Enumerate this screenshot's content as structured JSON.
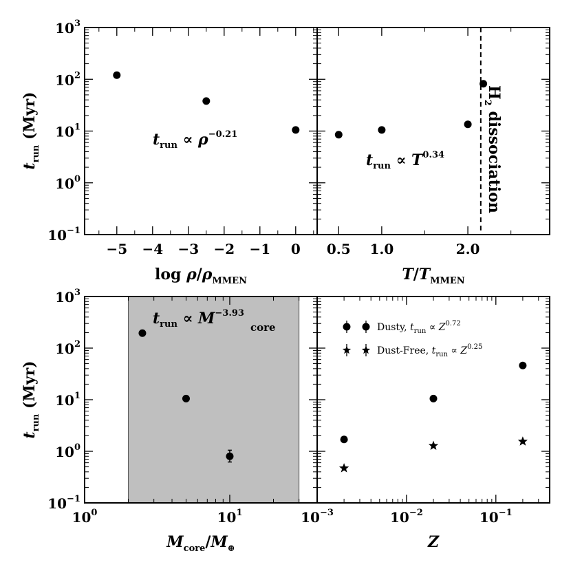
{
  "chart_data": [
    {
      "type": "scatter",
      "panel": "top-left",
      "xscale": "linear",
      "yscale": "log",
      "xlim": [
        -5.9,
        0.6
      ],
      "ylim": [
        0.1,
        1000
      ],
      "xticks": [
        -5,
        -4,
        -3,
        -2,
        -1,
        0
      ],
      "xtick_labels": [
        "−5",
        "−4",
        "−3",
        "−2",
        "−1",
        "0"
      ],
      "xlabel": {
        "pre": "log ",
        "rho": "ρ",
        "slash": "/",
        "rho2": "ρ",
        "sub": "MMEN"
      },
      "ylabel": {
        "t": "t",
        "sub": "run",
        "rest": " (Myr)"
      },
      "annotation": {
        "t": "t",
        "sub": "run",
        "mid": " ∝ ",
        "var": "ρ",
        "sup": "−0.21"
      },
      "series": [
        {
          "name": "points",
          "marker": "circle",
          "x": [
            -5.0,
            -2.5,
            0.0
          ],
          "y": [
            120,
            38,
            10.5
          ]
        }
      ]
    },
    {
      "type": "scatter",
      "panel": "top-right",
      "xscale": "linear",
      "yscale": "log",
      "xlim": [
        0.25,
        2.95
      ],
      "ylim": [
        0.1,
        1000
      ],
      "xticks": [
        0.5,
        1.0,
        2.0
      ],
      "xtick_labels": [
        "0.5",
        "1.0",
        "2.0"
      ],
      "vline": {
        "x": 2.15,
        "style": "dashed",
        "label_main": "H",
        "label_sub": "2",
        "label_rest": " dissociation"
      },
      "xlabel": {
        "T": "T",
        "slash": "/",
        "T2": "T",
        "sub": "MMEN"
      },
      "annotation": {
        "t": "t",
        "sub": "run",
        "mid": " ∝ ",
        "var": "T",
        "sup": "0.34"
      },
      "series": [
        {
          "name": "points",
          "marker": "circle",
          "x": [
            0.5,
            1.0,
            2.0,
            2.18
          ],
          "y": [
            8.5,
            10.5,
            13.5,
            82
          ]
        }
      ]
    },
    {
      "type": "scatter",
      "panel": "bottom-left",
      "xscale": "log",
      "yscale": "log",
      "xlim": [
        1,
        40
      ],
      "ylim": [
        0.1,
        1000
      ],
      "xticks": [
        1,
        10
      ],
      "xtick_labels": [
        {
          "base": "10",
          "exp": "0"
        },
        {
          "base": "10",
          "exp": "1"
        }
      ],
      "shaded_region": {
        "x": [
          2,
          30
        ],
        "color": "#bfbfbf"
      },
      "xlabel": {
        "M": "M",
        "sub": "core",
        "slash": "/",
        "M2": "M",
        "sub2": "⊕"
      },
      "ylabel": {
        "t": "t",
        "sub": "run",
        "rest": " (Myr)"
      },
      "annotation": {
        "t": "t",
        "sub": "run",
        "mid": " ∝ ",
        "var": "M",
        "sub2": "core",
        "sup": "−3.93"
      },
      "series": [
        {
          "name": "points",
          "marker": "circle",
          "x": [
            2.5,
            5.0,
            10.0
          ],
          "y": [
            195,
            10.5,
            0.8
          ],
          "yerr_low": [
            0,
            0,
            0.62
          ],
          "yerr_high": [
            0,
            0,
            1.05
          ]
        }
      ]
    },
    {
      "type": "scatter",
      "panel": "bottom-right",
      "xscale": "log",
      "yscale": "log",
      "xlim": [
        0.001,
        0.4
      ],
      "ylim": [
        0.1,
        1000
      ],
      "xticks": [
        0.001,
        0.01,
        0.1
      ],
      "xtick_labels": [
        {
          "base": "10",
          "exp": "−3"
        },
        {
          "base": "10",
          "exp": "−2"
        },
        {
          "base": "10",
          "exp": "−1"
        }
      ],
      "xlabel": {
        "Z": "Z"
      },
      "legend": {
        "placement": "top-left",
        "entries": [
          {
            "marker": "circle",
            "pre": "Dusty, ",
            "t": "t",
            "sub": "run",
            "mid": " ∝ ",
            "var": "Z",
            "sup": "0.72"
          },
          {
            "marker": "star",
            "pre": "Dust-Free, ",
            "t": "t",
            "sub": "run",
            "mid": " ∝ ",
            "var": "Z",
            "sup": "0.25"
          }
        ]
      },
      "series": [
        {
          "name": "Dusty",
          "marker": "circle",
          "x": [
            0.002,
            0.02,
            0.2
          ],
          "y": [
            1.7,
            10.5,
            46
          ]
        },
        {
          "name": "Dust-Free",
          "marker": "star",
          "x": [
            0.002,
            0.02,
            0.2
          ],
          "y": [
            0.47,
            1.28,
            1.55
          ]
        }
      ]
    }
  ],
  "y_tick_labels": [
    {
      "base": "10",
      "exp": "−1"
    },
    {
      "base": "10",
      "exp": "0"
    },
    {
      "base": "10",
      "exp": "1"
    },
    {
      "base": "10",
      "exp": "2"
    },
    {
      "base": "10",
      "exp": "3"
    }
  ]
}
